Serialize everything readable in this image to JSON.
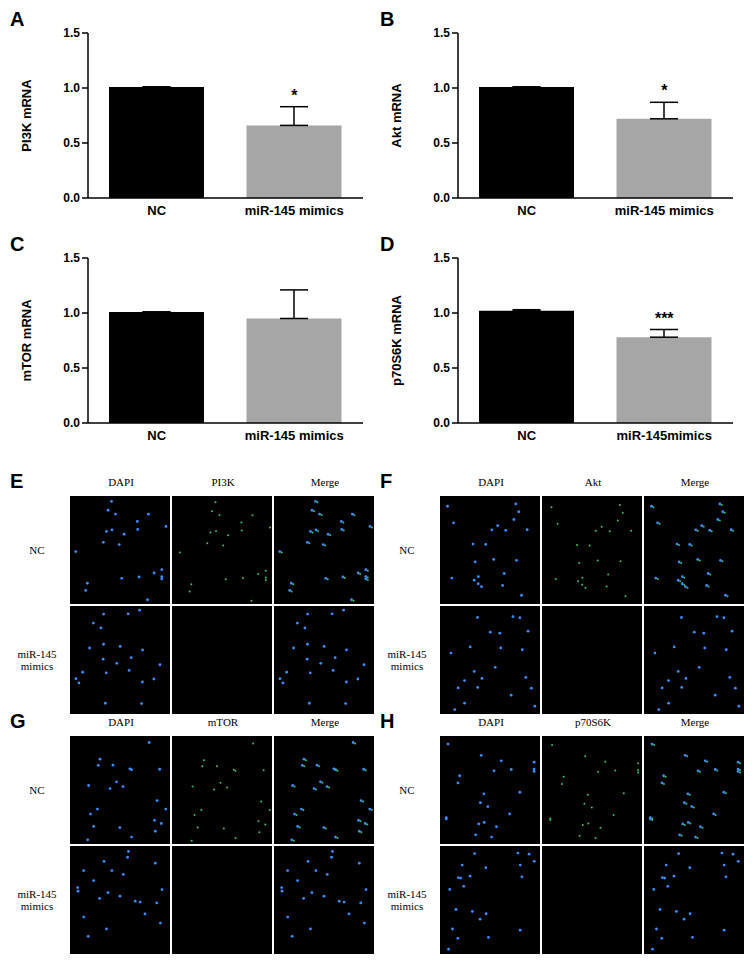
{
  "chart_data": [
    {
      "type": "bar",
      "panel": "A",
      "y_label": "PI3K mRNA",
      "categories": [
        "NC",
        "miR-145 mimics"
      ],
      "values": [
        1.01,
        0.66
      ],
      "errors": [
        0,
        0.17
      ],
      "colors": [
        "#000000",
        "#a6a6a6"
      ],
      "ylim": [
        0,
        1.5
      ],
      "yticks": [
        {
          "value": 0,
          "label": "0.0"
        },
        {
          "value": 0.5,
          "label": "0.5"
        },
        {
          "value": 1,
          "label": "1.0"
        },
        {
          "value": 1.5,
          "label": "1.5"
        }
      ],
      "significance": {
        "category": "miR-145 mimics",
        "text": "*"
      }
    },
    {
      "type": "bar",
      "panel": "B",
      "y_label": "Akt mRNA",
      "categories": [
        "NC",
        "miR-145 mimics"
      ],
      "values": [
        1.01,
        0.72
      ],
      "errors": [
        0,
        0.15
      ],
      "colors": [
        "#000000",
        "#a6a6a6"
      ],
      "ylim": [
        0,
        1.5
      ],
      "yticks": [
        {
          "value": 0,
          "label": "0.0"
        },
        {
          "value": 0.5,
          "label": "0.5"
        },
        {
          "value": 1,
          "label": "1.0"
        },
        {
          "value": 1.5,
          "label": "1.5"
        }
      ],
      "significance": {
        "category": "miR-145 mimics",
        "text": "*"
      }
    },
    {
      "type": "bar",
      "panel": "C",
      "y_label": "mTOR mRNA",
      "categories": [
        "NC",
        "miR-145 mimics"
      ],
      "values": [
        1.01,
        0.95
      ],
      "errors": [
        0,
        0.26
      ],
      "colors": [
        "#000000",
        "#a6a6a6"
      ],
      "ylim": [
        0,
        1.5
      ],
      "yticks": [
        {
          "value": 0,
          "label": "0.0"
        },
        {
          "value": 0.5,
          "label": "0.5"
        },
        {
          "value": 1,
          "label": "1.0"
        },
        {
          "value": 1.5,
          "label": "1.5"
        }
      ]
    },
    {
      "type": "bar",
      "panel": "D",
      "y_label": "p70S6K mRNA",
      "categories": [
        "NC",
        "miR-145mimics"
      ],
      "values": [
        1.02,
        0.78
      ],
      "errors": [
        0.01,
        0.07
      ],
      "colors": [
        "#000000",
        "#a6a6a6"
      ],
      "ylim": [
        0,
        1.5
      ],
      "yticks": [
        {
          "value": 0,
          "label": "0.0"
        },
        {
          "value": 0.5,
          "label": "0.5"
        },
        {
          "value": 1,
          "label": "1.0"
        },
        {
          "value": 1.5,
          "label": "1.5"
        }
      ],
      "significance": {
        "category": "miR-145mimics",
        "text": "***"
      }
    }
  ],
  "image_panels": [
    {
      "panel": "E",
      "columns": [
        "DAPI",
        "PI3K",
        "Merge"
      ],
      "rows": [
        "NC",
        "miR-145 mimics"
      ]
    },
    {
      "panel": "F",
      "columns": [
        "DAPI",
        "Akt",
        "Merge"
      ],
      "rows": [
        "NC",
        "miR-145 mimics"
      ]
    },
    {
      "panel": "G",
      "columns": [
        "DAPI",
        "mTOR",
        "Merge"
      ],
      "rows": [
        "NC",
        "miR-145 mimics"
      ]
    },
    {
      "panel": "H",
      "columns": [
        "DAPI",
        "p70S6K",
        "Merge"
      ],
      "rows": [
        "NC",
        "miR-145 mimics"
      ]
    }
  ]
}
